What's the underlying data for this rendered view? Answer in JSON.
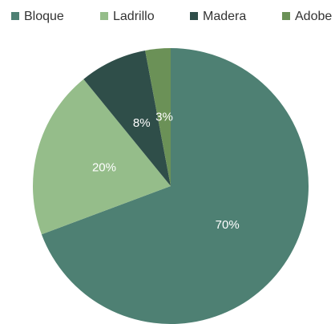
{
  "chart_data": {
    "type": "pie",
    "categories": [
      "Bloque",
      "Ladrillo",
      "Madera",
      "Adobe"
    ],
    "values": [
      70,
      20,
      8,
      3
    ],
    "value_labels": [
      "70%",
      "20%",
      "8%",
      "3%"
    ],
    "colors": [
      "#4e8073",
      "#95bd8a",
      "#2f4e49",
      "#6b9157"
    ],
    "legend": "top"
  }
}
